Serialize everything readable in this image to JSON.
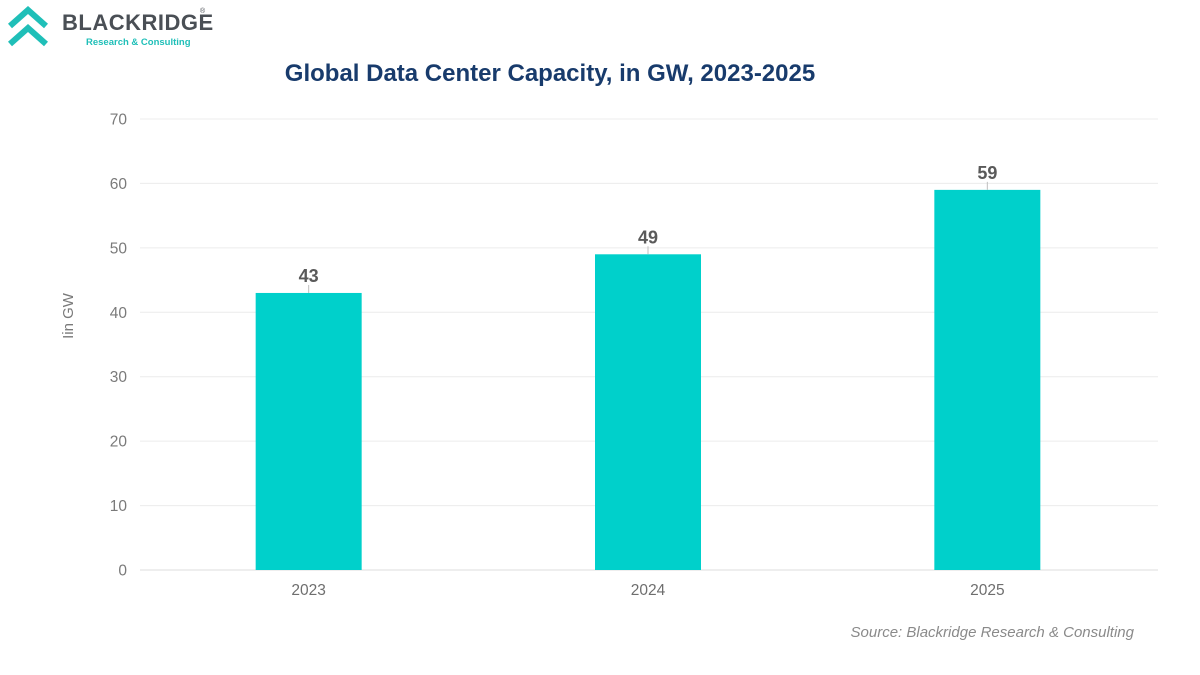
{
  "brand": {
    "name": "BLACKRIDGE",
    "registered_mark": "®",
    "tagline": "Research & Consulting",
    "colors": {
      "chevron": "#1fbfb8",
      "name": "#4a4f55"
    }
  },
  "source_note": "Source: Blackridge Research & Consulting",
  "chart_data": {
    "type": "bar",
    "title": "Global Data Center Capacity, in GW, 2023-2025",
    "xlabel": "",
    "ylabel": "Iin GW",
    "categories": [
      "2023",
      "2024",
      "2025"
    ],
    "values": [
      43,
      49,
      59
    ],
    "data_labels": [
      "43",
      "49",
      "59"
    ],
    "ylim": [
      0,
      70
    ],
    "yticks": [
      0,
      10,
      20,
      30,
      40,
      50,
      60,
      70
    ],
    "grid": true,
    "legend": "none",
    "bar_color": "#00d0cb"
  }
}
